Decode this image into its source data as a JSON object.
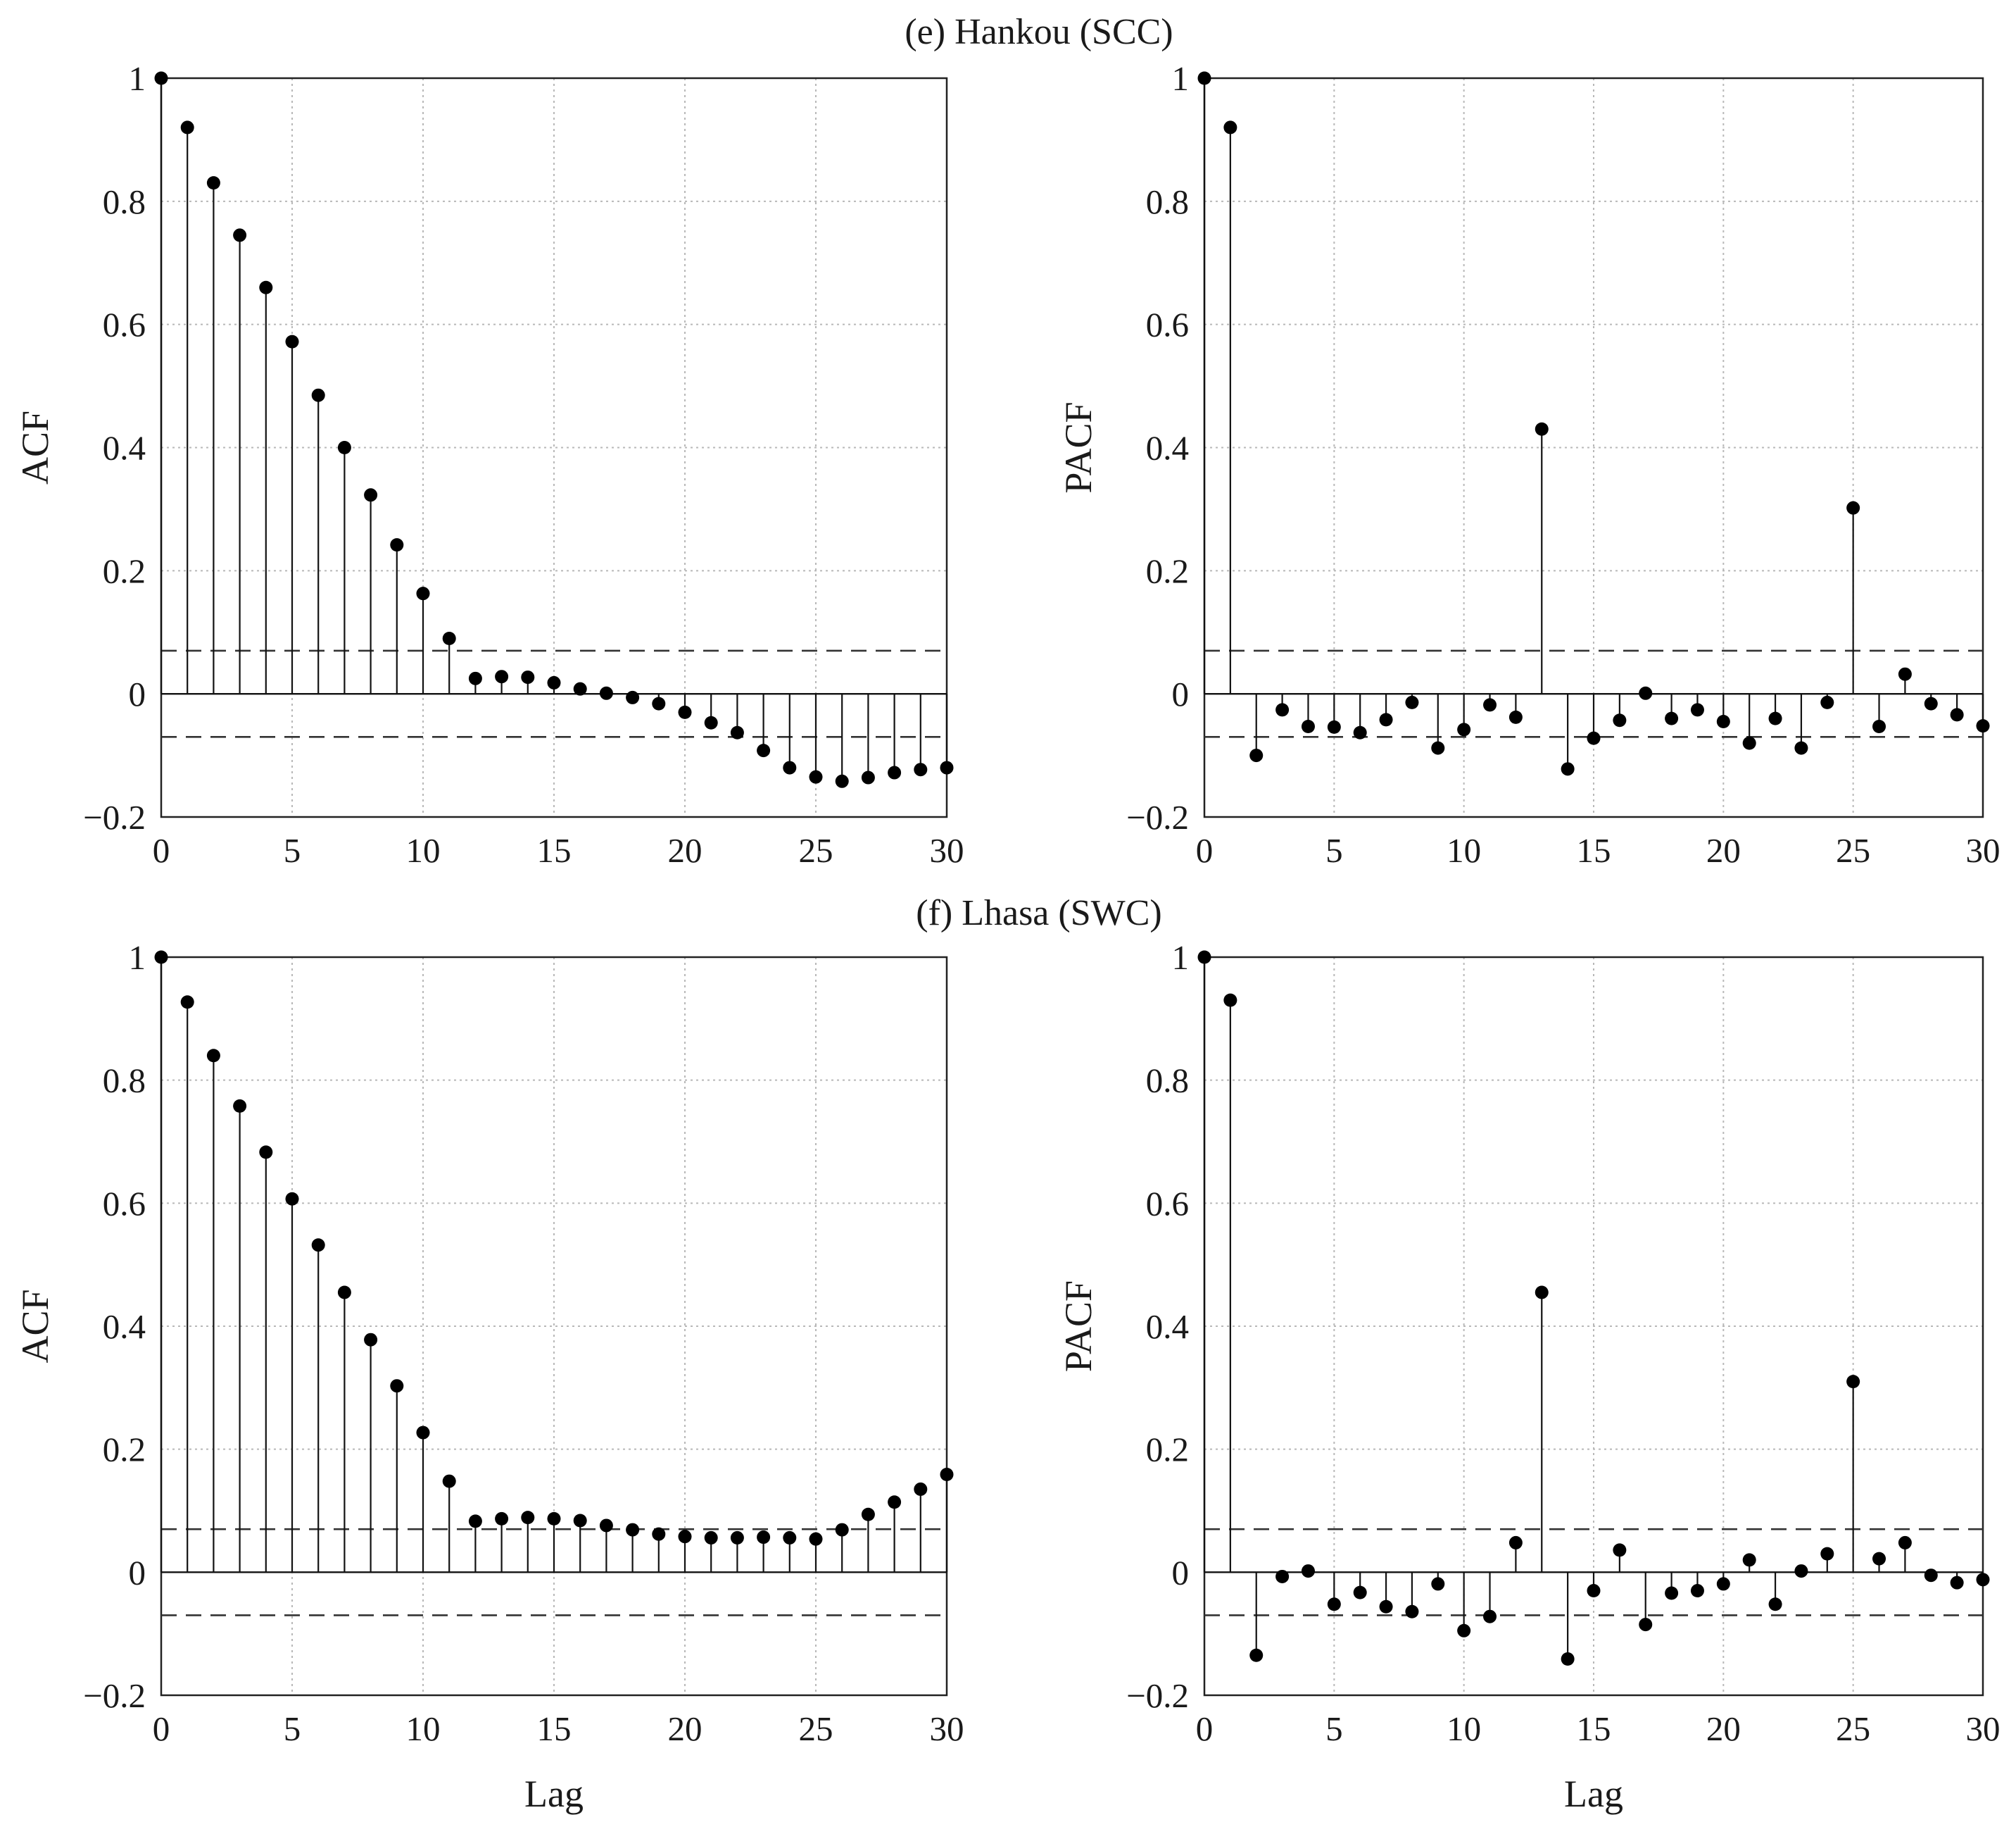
{
  "figure": {
    "titles": [
      "(e) Hankou (SCC)",
      "(f) Lhasa (SWC)"
    ]
  },
  "chart_data": [
    {
      "type": "stem",
      "group_title": "(e) Hankou (SCC)",
      "title": "",
      "xlabel": "",
      "ylabel": "ACF",
      "xlim": [
        0,
        30
      ],
      "ylim": [
        -0.2,
        1
      ],
      "xticks": [
        "0",
        "5",
        "10",
        "15",
        "20",
        "25",
        "30"
      ],
      "yticks": [
        "−0.2",
        "0",
        "0.2",
        "0.4",
        "0.6",
        "0.8",
        "1"
      ],
      "grid": true,
      "confidence_bounds": [
        0.07,
        -0.07
      ],
      "x": [
        0,
        1,
        2,
        3,
        4,
        5,
        6,
        7,
        8,
        9,
        10,
        11,
        12,
        13,
        14,
        15,
        16,
        17,
        18,
        19,
        20,
        21,
        22,
        23,
        24,
        25,
        26,
        27,
        28,
        29,
        30
      ],
      "values": [
        1,
        0.92,
        0.83,
        0.745,
        0.66,
        0.572,
        0.485,
        0.4,
        0.323,
        0.242,
        0.163,
        0.09,
        0.025,
        0.028,
        0.027,
        0.018,
        0.008,
        0.001,
        -0.006,
        -0.016,
        -0.03,
        -0.047,
        -0.063,
        -0.092,
        -0.12,
        -0.135,
        -0.142,
        -0.136,
        -0.128,
        -0.123,
        -0.12
      ]
    },
    {
      "type": "stem",
      "group_title": "(e) Hankou (SCC)",
      "title": "",
      "xlabel": "",
      "ylabel": "PACF",
      "xlim": [
        0,
        30
      ],
      "ylim": [
        -0.2,
        1
      ],
      "xticks": [
        "0",
        "5",
        "10",
        "15",
        "20",
        "25",
        "30"
      ],
      "yticks": [
        "−0.2",
        "0",
        "0.2",
        "0.4",
        "0.6",
        "0.8",
        "1"
      ],
      "grid": true,
      "confidence_bounds": [
        0.07,
        -0.07
      ],
      "x": [
        0,
        1,
        2,
        3,
        4,
        5,
        6,
        7,
        8,
        9,
        10,
        11,
        12,
        13,
        14,
        15,
        16,
        17,
        18,
        19,
        20,
        21,
        22,
        23,
        24,
        25,
        26,
        27,
        28,
        29,
        30
      ],
      "values": [
        1,
        0.92,
        -0.1,
        -0.026,
        -0.053,
        -0.054,
        -0.063,
        -0.042,
        -0.014,
        -0.088,
        -0.058,
        -0.018,
        -0.038,
        0.43,
        -0.122,
        -0.072,
        -0.043,
        0.001,
        -0.04,
        -0.026,
        -0.045,
        -0.08,
        -0.04,
        -0.088,
        -0.014,
        0.302,
        -0.053,
        0.032,
        -0.016,
        -0.034,
        -0.052
      ]
    },
    {
      "type": "stem",
      "group_title": "(f) Lhasa (SWC)",
      "title": "",
      "xlabel": "Lag",
      "ylabel": "ACF",
      "xlim": [
        0,
        30
      ],
      "ylim": [
        -0.2,
        1
      ],
      "xticks": [
        "0",
        "5",
        "10",
        "15",
        "20",
        "25",
        "30"
      ],
      "yticks": [
        "−0.2",
        "0",
        "0.2",
        "0.4",
        "0.6",
        "0.8",
        "1"
      ],
      "grid": true,
      "confidence_bounds": [
        0.07,
        -0.07
      ],
      "x": [
        0,
        1,
        2,
        3,
        4,
        5,
        6,
        7,
        8,
        9,
        10,
        11,
        12,
        13,
        14,
        15,
        16,
        17,
        18,
        19,
        20,
        21,
        22,
        23,
        24,
        25,
        26,
        27,
        28,
        29,
        30
      ],
      "values": [
        1,
        0.927,
        0.84,
        0.758,
        0.683,
        0.607,
        0.532,
        0.455,
        0.378,
        0.303,
        0.227,
        0.148,
        0.083,
        0.087,
        0.089,
        0.087,
        0.084,
        0.076,
        0.069,
        0.062,
        0.058,
        0.056,
        0.056,
        0.057,
        0.056,
        0.054,
        0.069,
        0.094,
        0.114,
        0.135,
        0.159
      ]
    },
    {
      "type": "stem",
      "group_title": "(f) Lhasa (SWC)",
      "title": "",
      "xlabel": "Lag",
      "ylabel": "PACF",
      "xlim": [
        0,
        30
      ],
      "ylim": [
        -0.2,
        1
      ],
      "xticks": [
        "0",
        "5",
        "10",
        "15",
        "20",
        "25",
        "30"
      ],
      "yticks": [
        "−0.2",
        "0",
        "0.2",
        "0.4",
        "0.6",
        "0.8",
        "1"
      ],
      "grid": true,
      "confidence_bounds": [
        0.07,
        -0.07
      ],
      "x": [
        0,
        1,
        2,
        3,
        4,
        5,
        6,
        7,
        8,
        9,
        10,
        11,
        12,
        13,
        14,
        15,
        16,
        17,
        18,
        19,
        20,
        21,
        22,
        23,
        24,
        25,
        26,
        27,
        28,
        29,
        30
      ],
      "values": [
        1,
        0.93,
        -0.135,
        -0.007,
        0.002,
        -0.052,
        -0.033,
        -0.056,
        -0.064,
        -0.019,
        -0.095,
        -0.072,
        0.048,
        0.455,
        -0.141,
        -0.03,
        0.036,
        -0.085,
        -0.034,
        -0.03,
        -0.019,
        0.02,
        -0.052,
        0.002,
        0.03,
        0.31,
        0.022,
        0.048,
        -0.005,
        -0.017,
        -0.012
      ]
    }
  ]
}
